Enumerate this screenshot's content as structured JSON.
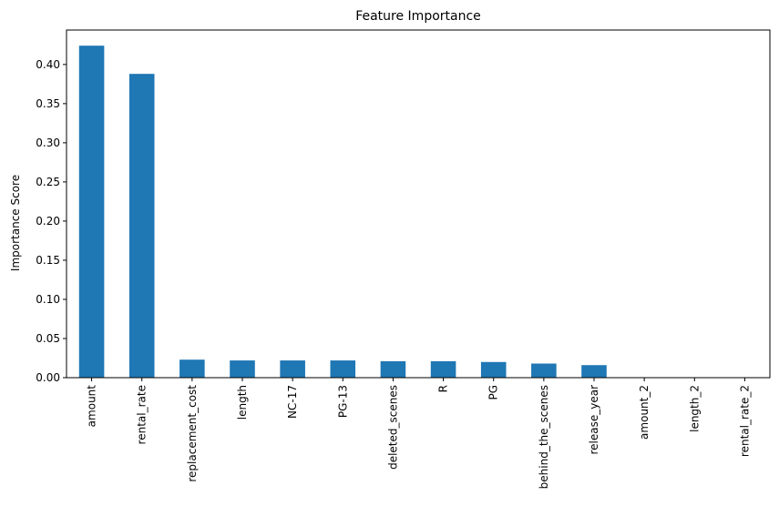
{
  "chart_data": {
    "type": "bar",
    "title": "Feature Importance",
    "xlabel": "",
    "ylabel": "Importance Score",
    "categories": [
      "amount",
      "rental_rate",
      "replacement_cost",
      "length",
      "NC-17",
      "PG-13",
      "deleted_scenes",
      "R",
      "PG",
      "behind_the_scenes",
      "release_year",
      "amount_2",
      "length_2",
      "rental_rate_2"
    ],
    "values": [
      0.424,
      0.388,
      0.023,
      0.022,
      0.022,
      0.022,
      0.021,
      0.021,
      0.02,
      0.018,
      0.016,
      0.0,
      0.0,
      0.0
    ],
    "ylim": [
      0,
      0.444
    ],
    "yticks": [
      "0.00",
      "0.05",
      "0.10",
      "0.15",
      "0.20",
      "0.25",
      "0.30",
      "0.35",
      "0.40"
    ],
    "bar_color": "#1f77b4",
    "grid": false,
    "legend": "none"
  }
}
